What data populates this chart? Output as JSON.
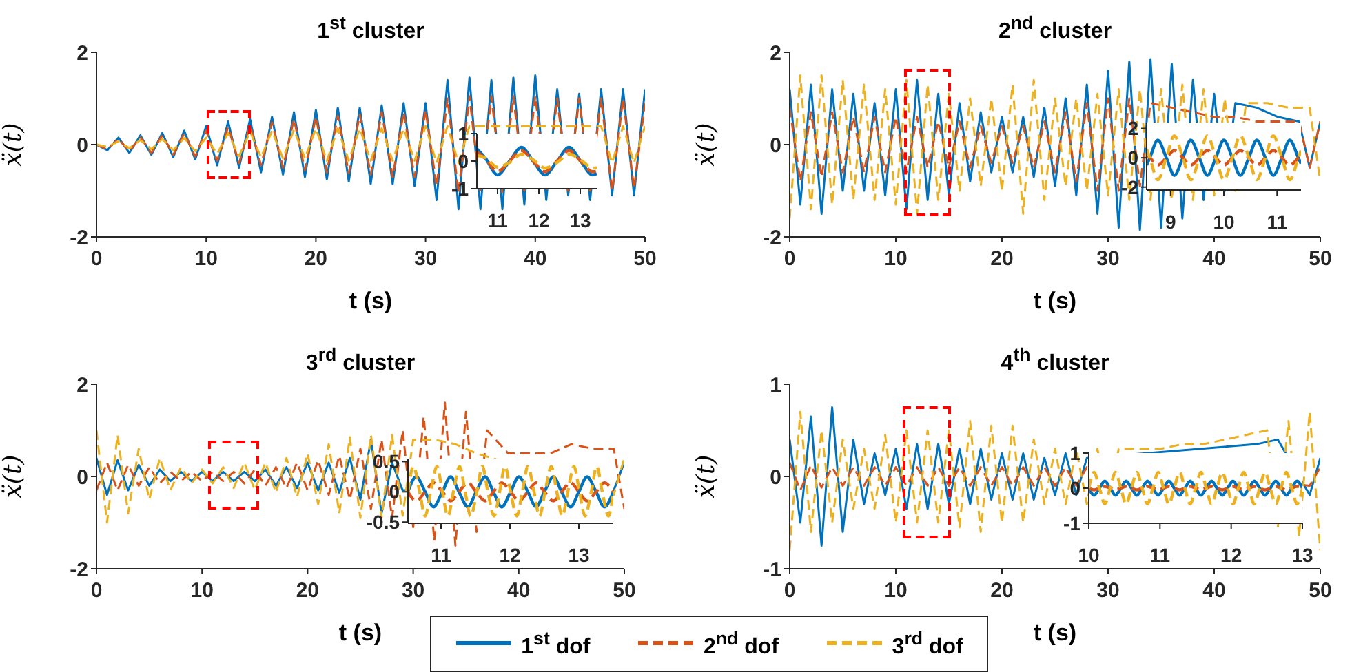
{
  "chart_data": [
    {
      "type": "line",
      "title": "1$^{st}$ cluster",
      "xlabel": "t (s)",
      "ylabel": "ẍ(t)",
      "legend": "bottom",
      "xlim": [
        0,
        50
      ],
      "xticks": [
        0,
        10,
        20,
        30,
        40,
        50
      ],
      "ylim": [
        -2,
        2
      ],
      "yticks": [
        -2,
        0,
        2
      ],
      "x": [
        0,
        1,
        2,
        3,
        4,
        5,
        6,
        7,
        8,
        9,
        10,
        11,
        12,
        13,
        14,
        15,
        16,
        17,
        18,
        19,
        20,
        21,
        22,
        23,
        24,
        25,
        26,
        27,
        28,
        29,
        30,
        31,
        32,
        33,
        34,
        35,
        36,
        37,
        38,
        39,
        40,
        41,
        42,
        43,
        44,
        45,
        46,
        47,
        48,
        49,
        50
      ],
      "series": [
        {
          "name": "1$^{st}$ dof",
          "color": "#0072bd",
          "line_style": "solid",
          "values": [
            0,
            -0.12,
            0.15,
            -0.18,
            0.2,
            -0.22,
            0.25,
            -0.27,
            0.3,
            -0.32,
            0.4,
            -0.45,
            0.5,
            -0.5,
            0.55,
            -0.6,
            0.6,
            -0.65,
            0.7,
            -0.7,
            0.75,
            -0.75,
            0.8,
            -0.8,
            0.8,
            -0.85,
            0.85,
            -0.85,
            0.9,
            -0.9,
            0.9,
            -1.2,
            1.4,
            -1.4,
            1.45,
            -1.4,
            1.4,
            -1.4,
            1.45,
            -1.3,
            1.5,
            -1.2,
            1.2,
            -1.1,
            1.1,
            -1.2,
            1.2,
            -1.1,
            1.2,
            -1.1,
            1.2
          ]
        },
        {
          "name": "2$^{nd}$ dof",
          "color": "#d95319",
          "line_style": "dashed",
          "values": [
            0,
            -0.1,
            0.12,
            -0.14,
            0.16,
            -0.18,
            0.2,
            -0.22,
            0.24,
            -0.26,
            0.3,
            -0.35,
            0.38,
            -0.4,
            0.42,
            -0.45,
            0.48,
            -0.5,
            0.55,
            -0.55,
            0.6,
            -0.6,
            0.62,
            -0.62,
            0.65,
            -0.65,
            0.7,
            -0.7,
            0.7,
            -0.7,
            0.75,
            -0.9,
            1.0,
            -1.05,
            1.05,
            -1.05,
            1.05,
            -1.05,
            1.05,
            -1.0,
            1.05,
            -1.0,
            1.0,
            -1.0,
            1.0,
            -1.0,
            1.0,
            -1.0,
            1.0,
            -0.95,
            0.9
          ]
        },
        {
          "name": "3$^{rd}$ dof",
          "color": "#edb120",
          "line_style": "dashed",
          "values": [
            0,
            -0.05,
            0.07,
            -0.08,
            0.1,
            -0.1,
            0.12,
            -0.12,
            0.14,
            -0.14,
            0.15,
            -0.2,
            0.25,
            -0.25,
            0.28,
            -0.28,
            0.3,
            -0.3,
            0.32,
            -0.3,
            0.35,
            -0.35,
            0.35,
            -0.35,
            0.35,
            -0.35,
            0.35,
            -0.35,
            0.35,
            -0.35,
            0.4,
            -0.4,
            0.4,
            -0.4,
            0.4,
            null,
            0.4,
            null,
            0.4,
            null,
            0.4,
            null,
            0.4,
            null,
            0.4,
            null,
            0.4,
            -0.4,
            0.4,
            -0.4,
            0.4
          ]
        }
      ]
    },
    {
      "type": "line",
      "title": "2$^{nd}$ cluster",
      "xlabel": "t (s)",
      "ylabel": "ẍ(t)",
      "xlim": [
        0,
        50
      ],
      "xticks": [
        0,
        10,
        20,
        30,
        40,
        50
      ],
      "ylim": [
        -2,
        2
      ],
      "yticks": [
        -2,
        0,
        2
      ],
      "x": [
        0,
        1,
        2,
        3,
        4,
        5,
        6,
        7,
        8,
        9,
        10,
        11,
        12,
        13,
        14,
        15,
        16,
        17,
        18,
        19,
        20,
        21,
        22,
        23,
        24,
        25,
        26,
        27,
        28,
        29,
        30,
        31,
        32,
        33,
        34,
        35,
        36,
        37,
        38,
        39,
        40,
        41,
        42,
        43,
        44,
        45,
        46,
        47,
        48,
        49,
        50
      ],
      "series": [
        {
          "color": "#0072bd",
          "line_style": "solid",
          "values": [
            1.2,
            -1.3,
            1.3,
            -1.5,
            1.2,
            -1.0,
            1.1,
            -1.0,
            0.9,
            -1.1,
            1.2,
            -1.4,
            1.4,
            -1.2,
            1.1,
            -1.1,
            0.9,
            -0.8,
            0.7,
            -0.6,
            0.6,
            -0.6,
            0.6,
            -0.7,
            0.8,
            -0.9,
            1.0,
            -1.1,
            1.3,
            -1.5,
            1.6,
            -1.8,
            1.8,
            -1.85,
            1.85,
            -1.8,
            1.75,
            -1.6,
            1.4,
            -1.2,
            1.1,
            -1.0,
            0.9,
            null,
            0.8,
            null,
            0.6,
            null,
            0.5,
            -0.5,
            0.5
          ]
        },
        {
          "color": "#d95319",
          "line_style": "dashed",
          "values": [
            0.8,
            -0.8,
            0.7,
            -0.7,
            0.7,
            -0.6,
            0.6,
            -0.6,
            0.6,
            -0.6,
            0.6,
            -0.6,
            0.6,
            -0.5,
            0.5,
            -0.5,
            0.5,
            -0.5,
            0.4,
            -0.4,
            0.4,
            -0.4,
            0.4,
            -0.5,
            0.5,
            -0.6,
            0.7,
            -0.8,
            0.9,
            -1.0,
            1.0,
            -1.0,
            1.0,
            -0.9,
            0.9,
            null,
            0.8,
            null,
            0.7,
            null,
            0.6,
            null,
            0.6,
            null,
            0.5,
            null,
            0.5,
            null,
            0.5,
            -0.5,
            0.5
          ]
        },
        {
          "color": "#edb120",
          "line_style": "dashed",
          "values": [
            -1.6,
            1.5,
            -1.4,
            1.5,
            -1.3,
            1.4,
            -1.2,
            1.3,
            -1.2,
            1.2,
            -1.3,
            1.4,
            -1.5,
            1.3,
            -1.2,
            1.1,
            -1.0,
            1.0,
            -0.9,
            1.0,
            -1.0,
            1.3,
            -1.5,
            1.4,
            -1.2,
            1.0,
            -0.9,
            1.0,
            -1.0,
            1.1,
            -1.1,
            1.2,
            -1.2,
            1.2,
            -1.2,
            1.2,
            -1.2,
            1.3,
            -1.2,
            1.2,
            -1.1,
            1.0,
            -1.0,
            0.9,
            null,
            0.9,
            null,
            0.8,
            null,
            0.8,
            -0.8
          ]
        }
      ]
    },
    {
      "type": "line",
      "title": "3$^{rd}$ cluster",
      "xlabel": "t (s)",
      "ylabel": "ẍ(t)",
      "xlim": [
        0,
        50
      ],
      "xticks": [
        0,
        10,
        20,
        30,
        40,
        50
      ],
      "ylim": [
        -2,
        2
      ],
      "yticks": [
        -2,
        0,
        2
      ],
      "x": [
        0,
        1,
        2,
        3,
        4,
        5,
        6,
        7,
        8,
        9,
        10,
        11,
        12,
        13,
        14,
        15,
        16,
        17,
        18,
        19,
        20,
        21,
        22,
        23,
        24,
        25,
        26,
        27,
        28,
        29,
        30,
        31,
        32,
        33,
        34,
        35,
        36,
        37,
        38,
        39,
        40,
        41,
        42,
        43,
        44,
        45,
        46,
        47,
        48,
        49,
        50
      ],
      "series": [
        {
          "color": "#0072bd",
          "line_style": "solid",
          "values": [
            0.4,
            -0.4,
            0.35,
            -0.3,
            0.25,
            -0.2,
            0.15,
            -0.1,
            0.1,
            -0.1,
            0.1,
            -0.1,
            0.1,
            -0.1,
            0.1,
            -0.1,
            0.15,
            -0.2,
            0.2,
            -0.25,
            0.3,
            -0.3,
            0.3,
            -0.35,
            0.4,
            -0.5,
            0.8,
            -0.8,
            0.3,
            -0.3,
            null,
            null,
            null,
            null,
            null,
            null,
            null,
            null,
            null,
            null,
            null,
            null,
            null,
            null,
            null,
            null,
            null,
            null,
            null,
            -0.3,
            0.3
          ]
        },
        {
          "color": "#d95319",
          "line_style": "dashed",
          "values": [
            -0.3,
            0.3,
            -0.3,
            0.25,
            -0.2,
            0.2,
            -0.15,
            0.1,
            -0.1,
            0.1,
            -0.1,
            0.1,
            -0.1,
            0.1,
            -0.15,
            0.15,
            -0.2,
            0.2,
            -0.25,
            0.3,
            -0.3,
            0.35,
            -0.4,
            0.45,
            -0.5,
            0.6,
            -0.7,
            0.8,
            -0.9,
            1.0,
            -1.1,
            1.3,
            -1.4,
            1.6,
            -1.5,
            1.4,
            -1.2,
            1.0,
            null,
            0.5,
            null,
            null,
            null,
            0.5,
            null,
            0.7,
            null,
            0.6,
            null,
            0.6,
            -0.7
          ]
        },
        {
          "color": "#edb120",
          "line_style": "dashed",
          "values": [
            1.0,
            -1.0,
            0.9,
            -0.8,
            0.6,
            -0.5,
            0.4,
            -0.3,
            0.2,
            -0.15,
            0.15,
            -0.15,
            0.2,
            -0.25,
            0.3,
            -0.3,
            0.3,
            -0.35,
            0.4,
            -0.45,
            0.5,
            -0.6,
            0.7,
            -0.8,
            0.85,
            -0.9,
            0.9,
            -0.9,
            0.9,
            -0.85,
            0.8,
            null,
            0.8,
            null,
            0.7,
            null,
            0.5,
            null,
            null,
            null,
            null,
            null,
            null,
            null,
            null,
            null,
            null,
            null,
            null,
            -0.4,
            0.4
          ]
        }
      ]
    },
    {
      "type": "line",
      "title": "4$^{th}$ cluster",
      "xlabel": "t (s)",
      "ylabel": "ẍ(t)",
      "xlim": [
        0,
        50
      ],
      "xticks": [
        0,
        10,
        20,
        30,
        40,
        50
      ],
      "ylim": [
        -1,
        1
      ],
      "yticks": [
        -1,
        0,
        1
      ],
      "x": [
        0,
        1,
        2,
        3,
        4,
        5,
        6,
        7,
        8,
        9,
        10,
        11,
        12,
        13,
        14,
        15,
        16,
        17,
        18,
        19,
        20,
        21,
        22,
        23,
        24,
        25,
        26,
        27,
        28,
        29,
        30,
        31,
        32,
        33,
        34,
        35,
        36,
        37,
        38,
        39,
        40,
        41,
        42,
        43,
        44,
        45,
        46,
        47,
        48,
        49,
        50
      ],
      "series": [
        {
          "color": "#0072bd",
          "line_style": "solid",
          "values": [
            0.4,
            -0.5,
            0.65,
            -0.75,
            0.75,
            -0.6,
            0.4,
            -0.3,
            0.25,
            -0.2,
            0.3,
            -0.35,
            0.35,
            -0.35,
            0.35,
            -0.3,
            0.3,
            -0.3,
            0.3,
            -0.25,
            0.25,
            -0.25,
            0.25,
            -0.25,
            0.2,
            -0.2,
            0.25,
            -0.2,
            0.2,
            null,
            null,
            null,
            null,
            null,
            null,
            null,
            null,
            null,
            null,
            null,
            null,
            null,
            null,
            null,
            0.35,
            null,
            0.4,
            null,
            null,
            -0.2,
            0.2
          ]
        },
        {
          "color": "#d95319",
          "line_style": "dashed",
          "values": [
            0.15,
            -0.15,
            0.12,
            -0.12,
            0.1,
            -0.1,
            0.1,
            -0.1,
            0.1,
            -0.1,
            0.1,
            -0.1,
            0.1,
            -0.1,
            0.1,
            -0.1,
            0.1,
            -0.1,
            0.1,
            -0.1,
            0.1,
            -0.1,
            0.1,
            -0.1,
            0.1,
            -0.1,
            0.1,
            -0.1,
            0.1,
            null,
            null,
            null,
            null,
            null,
            null,
            null,
            null,
            null,
            null,
            null,
            null,
            null,
            null,
            null,
            null,
            null,
            null,
            null,
            null,
            -0.1,
            0.1
          ]
        },
        {
          "color": "#edb120",
          "line_style": "dashed",
          "values": [
            -0.8,
            0.7,
            -0.6,
            0.5,
            -0.5,
            0.4,
            -0.35,
            0.3,
            -0.35,
            0.45,
            -0.5,
            0.5,
            -0.5,
            0.5,
            -0.5,
            0.5,
            -0.55,
            0.6,
            -0.6,
            0.55,
            -0.5,
            0.55,
            -0.5,
            0.4,
            -0.3,
            0.3,
            -0.3,
            0.3,
            -0.3,
            0.3,
            -0.3,
            0.3,
            null,
            0.3,
            null,
            0.3,
            null,
            0.35,
            null,
            0.35,
            null,
            0.4,
            null,
            0.45,
            null,
            0.5,
            -0.55,
            0.6,
            -0.65,
            0.7,
            -0.8
          ]
        }
      ]
    },
    {
      "type": "line",
      "xlim": [
        10.5,
        13.4
      ],
      "xticks": [
        11,
        12,
        13
      ],
      "ylim": [
        -1,
        1
      ],
      "yticks": [
        -1,
        0,
        1
      ],
      "x": [
        10.5,
        10.71,
        11.0,
        11.29,
        11.58,
        11.86,
        12.15,
        12.44,
        12.73,
        13.01,
        13.3,
        13.4
      ],
      "series": [
        {
          "color": "#0072bd",
          "line_style": "solid",
          "values": [
            0.45,
            0.1,
            -0.5,
            0,
            0.5,
            0,
            -0.5,
            0,
            0.5,
            0,
            -0.5,
            -0.45
          ]
        },
        {
          "color": "#d95319",
          "line_style": "dashed",
          "values": [
            0.33,
            0.08,
            -0.38,
            0,
            0.38,
            0,
            -0.38,
            0,
            0.38,
            0,
            -0.38,
            -0.36
          ]
        },
        {
          "color": "#edb120",
          "line_style": "dashed",
          "values": [
            0.2,
            0.12,
            -0.22,
            -0.05,
            0.25,
            0.05,
            -0.25,
            -0.05,
            0.25,
            0.05,
            -0.25,
            -0.24
          ]
        }
      ]
    },
    {
      "type": "line",
      "xlim": [
        8.55,
        11.45
      ],
      "xticks": [
        9,
        10,
        11
      ],
      "ylim": [
        -2.2,
        2.4
      ],
      "yticks": [
        -2,
        0,
        2
      ],
      "x": [
        8.55,
        8.61,
        8.76,
        8.92,
        9.07,
        9.23,
        9.38,
        9.54,
        9.69,
        9.85,
        10.0,
        10.16,
        10.31,
        10.47,
        10.62,
        10.78,
        10.93,
        11.09,
        11.24,
        11.4,
        11.45
      ],
      "series": [
        {
          "color": "#0072bd",
          "line_style": "solid",
          "values": [
            -0.5,
            0,
            1.2,
            0,
            -1.2,
            0,
            1.2,
            0,
            -1.2,
            0,
            1.2,
            0,
            -1.2,
            0,
            1.2,
            0,
            -1.2,
            0,
            1.2,
            0,
            -0.4
          ]
        },
        {
          "color": "#d95319",
          "line_style": "dashed",
          "values": [
            0.2,
            0,
            -0.5,
            0,
            0.5,
            0,
            -0.5,
            0,
            0.5,
            0,
            -0.5,
            0,
            0.5,
            0,
            -0.5,
            0,
            0.5,
            0,
            -0.5,
            0,
            0.2
          ]
        },
        {
          "color": "#edb120",
          "line_style": "dashed",
          "values": [
            0.6,
            0,
            -1.5,
            0,
            1.5,
            0,
            -1.5,
            0,
            1.5,
            0,
            -1.5,
            0,
            1.5,
            0,
            -1.5,
            0,
            1.5,
            0,
            -1.5,
            0,
            0.5
          ]
        }
      ]
    },
    {
      "type": "line",
      "xlim": [
        10.52,
        13.5
      ],
      "xticks": [
        11,
        12,
        13
      ],
      "ylim": [
        -0.52,
        0.55
      ],
      "yticks": [
        -0.5,
        0,
        0.5
      ],
      "series": [
        {
          "color": "#0072bd",
          "line_style": "solid",
          "x": [
            10.52,
            10.64,
            10.77,
            10.89,
            11.02,
            11.14,
            11.26,
            11.39,
            11.51,
            11.64,
            11.76,
            11.88,
            12.01,
            12.13,
            12.26,
            12.38,
            12.5,
            12.63,
            12.75,
            12.88,
            13.0,
            13.12,
            13.25,
            13.37,
            13.5
          ],
          "values": [
            0,
            0.25,
            0,
            -0.25,
            0,
            0.25,
            0,
            -0.25,
            0,
            0.25,
            0,
            -0.25,
            0,
            0.25,
            0,
            -0.25,
            0,
            0.25,
            0,
            -0.25,
            0,
            0.25,
            0,
            -0.25,
            0
          ]
        },
        {
          "color": "#d95319",
          "line_style": "dashed",
          "x": [
            10.52,
            10.64,
            10.77,
            10.89,
            11.02,
            11.14,
            11.26,
            11.39,
            11.51,
            11.64,
            11.76,
            11.88,
            12.01,
            12.13,
            12.26,
            12.38,
            12.5,
            12.63,
            12.75,
            12.88,
            13.0,
            13.12,
            13.25,
            13.37,
            13.5
          ],
          "values": [
            0,
            -0.15,
            0,
            0.15,
            0,
            -0.15,
            0,
            0.15,
            0,
            -0.15,
            0,
            0.15,
            0,
            -0.15,
            0,
            0.15,
            0,
            -0.15,
            0,
            0.15,
            0,
            -0.15,
            0,
            0.15,
            0
          ]
        },
        {
          "color": "#edb120",
          "line_style": "dashed",
          "x": [
            10.52,
            10.6,
            10.69,
            10.77,
            10.85,
            10.94,
            11.02,
            11.1,
            11.18,
            11.27,
            11.35,
            11.43,
            11.52,
            11.6,
            11.68,
            11.77,
            11.85,
            11.93,
            12.01,
            12.1,
            12.18,
            12.26,
            12.35,
            12.43,
            12.51,
            12.6,
            12.68,
            12.76,
            12.84,
            12.93,
            13.01,
            13.09,
            13.18,
            13.26,
            13.34,
            13.43,
            13.5
          ],
          "values": [
            0,
            0.42,
            0,
            -0.4,
            0,
            0.42,
            0,
            -0.4,
            0,
            0.42,
            0,
            -0.4,
            0,
            0.42,
            0,
            -0.4,
            0,
            0.42,
            0,
            -0.4,
            0,
            0.42,
            0,
            -0.4,
            0,
            0.42,
            0,
            -0.4,
            0,
            0.42,
            0,
            -0.4,
            0,
            0.42,
            0,
            -0.4,
            0
          ]
        }
      ]
    },
    {
      "type": "line",
      "xlim": [
        10,
        13
      ],
      "xticks": [
        10,
        11,
        12,
        13
      ],
      "ylim": [
        -1,
        1
      ],
      "yticks": [
        -1,
        0,
        1
      ],
      "x": [
        10,
        10.075,
        10.15,
        10.225,
        10.3,
        10.375,
        10.45,
        10.525,
        10.6,
        10.675,
        10.75,
        10.825,
        10.9,
        10.975,
        11.05,
        11.125,
        11.2,
        11.275,
        11.35,
        11.425,
        11.5,
        11.575,
        11.65,
        11.725,
        11.8,
        11.875,
        11.95,
        12.025,
        12.1,
        12.175,
        12.25,
        12.325,
        12.4,
        12.475,
        12.55,
        12.625,
        12.7,
        12.775,
        12.85,
        12.925,
        13
      ],
      "series": [
        {
          "color": "#0072bd",
          "line_style": "solid",
          "values": [
            0,
            -0.2,
            0,
            0.2,
            0,
            -0.2,
            0,
            0.2,
            0,
            -0.2,
            0,
            0.2,
            0,
            -0.2,
            0,
            0.2,
            0,
            -0.2,
            0,
            0.2,
            0,
            -0.2,
            0,
            0.2,
            0,
            -0.2,
            0,
            0.2,
            0,
            -0.2,
            0,
            0.2,
            0,
            -0.2,
            0,
            0.2,
            0,
            -0.2,
            0,
            0.2,
            0
          ]
        },
        {
          "color": "#d95319",
          "line_style": "dashed",
          "values": [
            0,
            -0.05,
            0,
            0.05,
            0,
            -0.05,
            0,
            0.05,
            0,
            -0.05,
            0,
            0.05,
            0,
            -0.05,
            0,
            0.05,
            0,
            -0.05,
            0,
            0.05,
            0,
            -0.05,
            0,
            0.05,
            0,
            -0.05,
            0,
            0.05,
            0,
            -0.05,
            0,
            0.05,
            0,
            -0.05,
            0,
            0.05,
            0,
            -0.05,
            0,
            0.05,
            0
          ]
        },
        {
          "color": "#edb120",
          "line_style": "dashed",
          "values": [
            0,
            0.45,
            0,
            -0.45,
            0,
            0.45,
            0,
            -0.45,
            0,
            0.45,
            0,
            -0.45,
            0,
            0.45,
            0,
            -0.45,
            0,
            0.45,
            0,
            -0.45,
            0,
            0.45,
            0,
            -0.45,
            0,
            0.45,
            0,
            -0.45,
            0,
            0.45,
            0,
            -0.45,
            0,
            0.45,
            0,
            -0.45,
            0,
            0.45,
            0,
            -0.45,
            0
          ]
        }
      ]
    }
  ]
}
